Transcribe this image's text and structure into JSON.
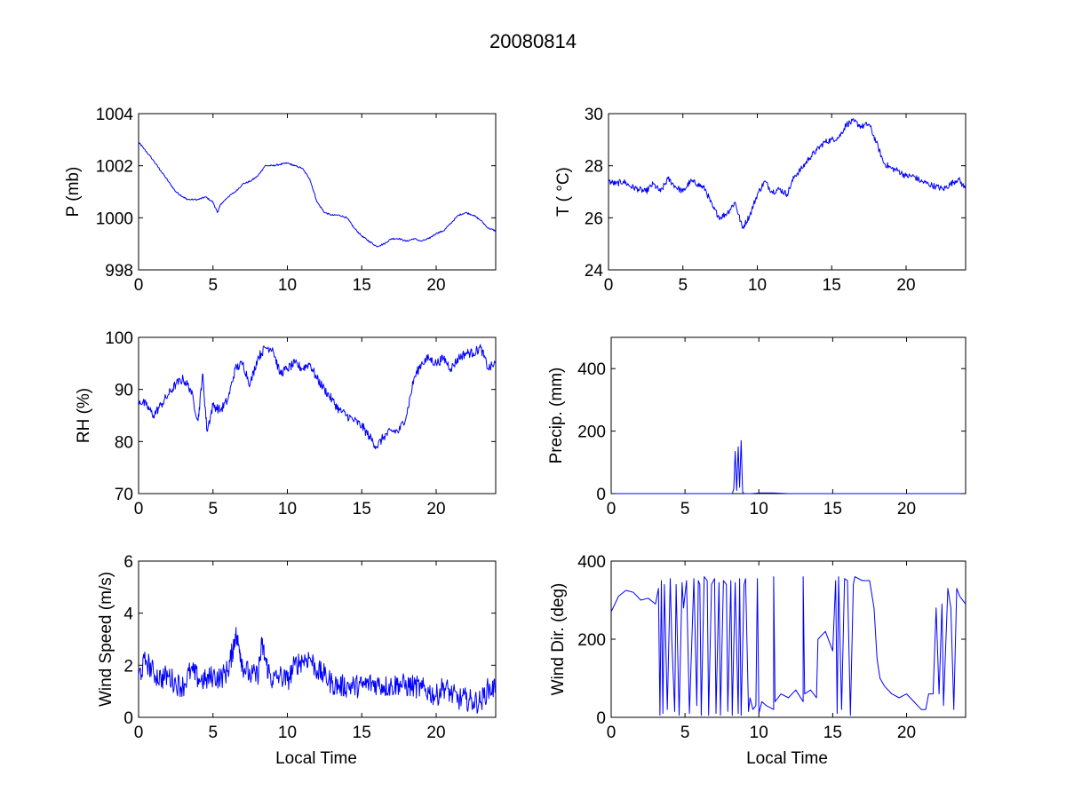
{
  "figure": {
    "title": "20080814"
  },
  "colors": {
    "series": "#0000ff",
    "axes": "#000000",
    "background": "#ffffff"
  },
  "chart_data": [
    {
      "id": "pressure",
      "type": "line",
      "xlabel": "",
      "ylabel": "P (mb)",
      "xlim": [
        0,
        24
      ],
      "ylim": [
        998,
        1004
      ],
      "xticks": [
        0,
        5,
        10,
        15,
        20
      ],
      "yticks": [
        998,
        1000,
        1002,
        1004
      ],
      "grid": false,
      "noise": 0.03,
      "series": [
        {
          "x": [
            0,
            0.3,
            1,
            1.5,
            2,
            2.5,
            3,
            3.3,
            4,
            4.5,
            5,
            5.3,
            5.5,
            6,
            6.5,
            7,
            7.5,
            8,
            8.5,
            9,
            9.5,
            10,
            10.5,
            11,
            11.5,
            12,
            12.5,
            13,
            13.5,
            14,
            14.5,
            15,
            15.5,
            16,
            16.5,
            17,
            17.5,
            18,
            18.5,
            19,
            19.5,
            20,
            20.5,
            21,
            21.5,
            22,
            22.5,
            23,
            23.5,
            24
          ],
          "y": [
            1002.9,
            1002.7,
            1002.2,
            1001.8,
            1001.4,
            1001.0,
            1000.8,
            1000.7,
            1000.7,
            1000.8,
            1000.6,
            1000.2,
            1000.5,
            1000.8,
            1001.0,
            1001.3,
            1001.4,
            1001.6,
            1002.0,
            1002.0,
            1002.05,
            1002.1,
            1002.0,
            1001.9,
            1001.5,
            1000.6,
            1000.2,
            1000.1,
            1000.1,
            1000.0,
            999.6,
            999.3,
            999.1,
            998.9,
            999.0,
            999.2,
            999.2,
            999.1,
            999.2,
            999.1,
            999.2,
            999.4,
            999.5,
            999.8,
            1000.1,
            1000.2,
            1000.1,
            999.9,
            999.6,
            999.5
          ]
        }
      ]
    },
    {
      "id": "temperature",
      "type": "line",
      "xlabel": "",
      "ylabel": "T ( °C)",
      "xlim": [
        0,
        24
      ],
      "ylim": [
        24,
        30
      ],
      "xticks": [
        0,
        5,
        10,
        15,
        20
      ],
      "yticks": [
        24,
        26,
        28,
        30
      ],
      "grid": false,
      "noise": 0.12,
      "series": [
        {
          "x": [
            0,
            0.5,
            1,
            1.5,
            2,
            2.5,
            3,
            3.5,
            4,
            4.5,
            5,
            5.5,
            6,
            6.5,
            7,
            7.5,
            8,
            8.5,
            9,
            9.5,
            10,
            10.5,
            11,
            11.5,
            12,
            12.5,
            13,
            13.5,
            14,
            14.5,
            15,
            15.5,
            16,
            16.5,
            17,
            17.5,
            18,
            18.5,
            19,
            19.5,
            20,
            20.5,
            21,
            21.5,
            22,
            22.5,
            23,
            23.5,
            24
          ],
          "y": [
            27.4,
            27.3,
            27.4,
            27.2,
            27.1,
            27.0,
            27.3,
            27.0,
            27.5,
            27.2,
            27.0,
            27.4,
            27.3,
            27.1,
            26.4,
            26.0,
            26.2,
            26.6,
            25.6,
            26.1,
            26.9,
            27.4,
            27.0,
            27.1,
            26.9,
            27.6,
            27.9,
            28.3,
            28.6,
            28.9,
            29.0,
            29.1,
            29.6,
            29.7,
            29.5,
            29.6,
            28.9,
            28.1,
            27.9,
            27.8,
            27.6,
            27.6,
            27.4,
            27.3,
            27.2,
            27.1,
            27.3,
            27.5,
            27.1
          ]
        }
      ]
    },
    {
      "id": "humidity",
      "type": "line",
      "xlabel": "",
      "ylabel": "RH (%)",
      "xlim": [
        0,
        24
      ],
      "ylim": [
        70,
        100
      ],
      "xticks": [
        0,
        5,
        10,
        15,
        20
      ],
      "yticks": [
        70,
        80,
        90,
        100
      ],
      "grid": false,
      "noise": 0.9,
      "series": [
        {
          "x": [
            0,
            0.5,
            1,
            1.5,
            2,
            2.5,
            3,
            3.5,
            4,
            4.3,
            4.6,
            5,
            5.5,
            6,
            6.5,
            7,
            7.5,
            8,
            8.5,
            9,
            9.5,
            10,
            10.5,
            11,
            11.5,
            12,
            12.5,
            13,
            13.5,
            14,
            14.5,
            15,
            15.5,
            16,
            16.5,
            17,
            17.5,
            18,
            18.5,
            19,
            19.5,
            20,
            20.5,
            21,
            21.5,
            22,
            22.5,
            23,
            23.5,
            24
          ],
          "y": [
            88,
            87,
            85,
            87,
            89,
            91,
            92,
            90,
            84,
            93,
            82,
            87,
            86,
            88,
            94,
            95,
            91,
            96,
            98,
            98,
            93,
            94,
            95,
            94,
            95,
            92,
            90,
            88,
            86,
            85,
            84,
            83,
            81,
            79,
            81,
            82,
            82,
            85,
            92,
            95,
            96,
            95,
            96,
            94,
            96,
            97,
            97,
            98,
            94,
            95
          ]
        }
      ]
    },
    {
      "id": "precipitation",
      "type": "line",
      "xlabel": "",
      "ylabel": "Precip. (mm)",
      "xlim": [
        0,
        24
      ],
      "ylim": [
        0,
        500
      ],
      "xticks": [
        0,
        5,
        10,
        15,
        20
      ],
      "yticks": [
        0,
        200,
        400
      ],
      "grid": false,
      "noise": 0,
      "series": [
        {
          "x": [
            0,
            6.5,
            8.2,
            8.3,
            8.4,
            8.5,
            8.6,
            8.7,
            8.8,
            8.9,
            9.0,
            9.5,
            10,
            11,
            12,
            24
          ],
          "y": [
            0,
            0,
            0,
            15,
            135,
            10,
            150,
            20,
            170,
            5,
            0,
            0,
            2,
            2,
            0,
            0
          ]
        }
      ]
    },
    {
      "id": "wind_speed",
      "type": "line",
      "xlabel": "Local Time",
      "ylabel": "Wind Speed (m/s)",
      "xlim": [
        0,
        24
      ],
      "ylim": [
        0,
        6
      ],
      "xticks": [
        0,
        5,
        10,
        15,
        20
      ],
      "yticks": [
        0,
        2,
        4,
        6
      ],
      "grid": false,
      "noise": 0.45,
      "series": [
        {
          "x": [
            0,
            0.5,
            1,
            1.5,
            2,
            2.5,
            3,
            3.5,
            4,
            4.5,
            5,
            5.5,
            6,
            6.3,
            6.5,
            6.8,
            7,
            7.5,
            8,
            8.3,
            8.6,
            9,
            9.5,
            10,
            10.5,
            11,
            11.5,
            12,
            12.5,
            13,
            13.5,
            14,
            14.5,
            15,
            15.5,
            16,
            16.5,
            17,
            17.5,
            18,
            18.5,
            19,
            19.5,
            20,
            20.5,
            21,
            21.5,
            22,
            22.5,
            23,
            23.5,
            24
          ],
          "y": [
            1.6,
            2.2,
            1.7,
            1.5,
            1.6,
            1.3,
            1.2,
            1.8,
            1.5,
            1.4,
            1.6,
            1.5,
            1.8,
            2.5,
            3.2,
            2.6,
            2.0,
            1.6,
            1.6,
            2.8,
            2.0,
            1.4,
            1.6,
            1.4,
            2.0,
            2.2,
            2.3,
            1.8,
            1.6,
            1.3,
            1.2,
            1.2,
            1.2,
            1.2,
            1.3,
            1.3,
            1.2,
            1.2,
            1.3,
            1.2,
            1.2,
            1.1,
            1.0,
            0.8,
            1.2,
            0.9,
            0.7,
            0.7,
            0.6,
            0.6,
            1.1,
            1.1
          ]
        }
      ]
    },
    {
      "id": "wind_direction",
      "type": "line",
      "xlabel": "Local Time",
      "ylabel": "Wind Dir. (deg)",
      "xlim": [
        0,
        24
      ],
      "ylim": [
        0,
        400
      ],
      "xticks": [
        0,
        5,
        10,
        15,
        20
      ],
      "yticks": [
        0,
        200,
        400
      ],
      "grid": false,
      "noise": 0,
      "series": [
        {
          "x": [
            0,
            0.5,
            1,
            1.5,
            2,
            2.5,
            3,
            3.2,
            3.3,
            3.4,
            3.5,
            3.6,
            3.8,
            4.0,
            4.1,
            4.3,
            4.4,
            4.6,
            4.8,
            4.9,
            5.1,
            5.3,
            5.6,
            5.8,
            5.9,
            6.0,
            6.1,
            6.3,
            6.5,
            6.6,
            6.8,
            7.0,
            7.1,
            7.3,
            7.4,
            7.6,
            7.8,
            7.9,
            8.1,
            8.2,
            8.4,
            8.6,
            8.7,
            8.8,
            9.0,
            9.1,
            9.3,
            9.4,
            9.6,
            9.8,
            9.9,
            10.0,
            10.2,
            10.5,
            11.0,
            11.0,
            11.1,
            11.5,
            12.0,
            12.5,
            13.0,
            13.0,
            13.1,
            13.5,
            13.9,
            14.0,
            14.5,
            15.0,
            15.2,
            15.3,
            15.4,
            15.6,
            15.8,
            16.0,
            16.2,
            16.4,
            16.5,
            17.0,
            17.5,
            17.8,
            18.0,
            18.2,
            18.5,
            19,
            19.5,
            20,
            20.5,
            21,
            21.3,
            21.5,
            21.8,
            22.0,
            22.2,
            22.4,
            22.5,
            22.8,
            23.0,
            23.2,
            23.4,
            23.6,
            24
          ],
          "y": [
            270,
            310,
            325,
            320,
            300,
            305,
            290,
            330,
            5,
            350,
            10,
            340,
            20,
            355,
            200,
            15,
            340,
            5,
            345,
            280,
            350,
            10,
            355,
            30,
            350,
            340,
            5,
            360,
            350,
            5,
            340,
            355,
            10,
            345,
            5,
            350,
            340,
            15,
            350,
            5,
            345,
            10,
            355,
            5,
            340,
            355,
            15,
            50,
            20,
            30,
            355,
            10,
            40,
            30,
            20,
            360,
            40,
            60,
            50,
            70,
            40,
            360,
            60,
            70,
            50,
            200,
            220,
            170,
            350,
            10,
            360,
            20,
            355,
            350,
            5,
            340,
            360,
            350,
            350,
            280,
            150,
            100,
            80,
            60,
            50,
            60,
            40,
            20,
            20,
            60,
            60,
            280,
            60,
            290,
            30,
            330,
            280,
            20,
            330,
            310,
            290
          ]
        }
      ]
    }
  ]
}
